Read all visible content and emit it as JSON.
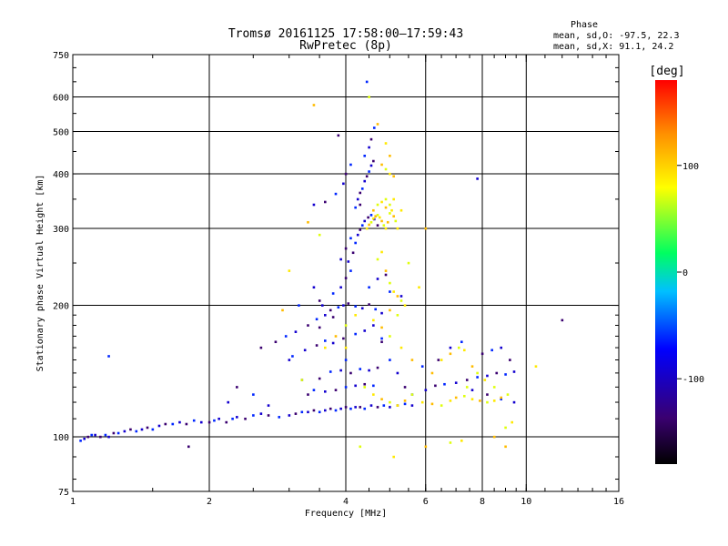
{
  "chart_data": {
    "type": "scatter",
    "title": "Tromsø 20161125 17:58:00–17:59:43",
    "subtitle": "RwPretec (8p)",
    "xlabel": "Frequency [MHz]",
    "ylabel": "Stationary phase Virtual Height [km]",
    "xscale": "log",
    "yscale": "log",
    "xlim": [
      1,
      16
    ],
    "ylim": [
      75,
      750
    ],
    "xticks": [
      1,
      2,
      4,
      6,
      8,
      10,
      16
    ],
    "yticks": [
      75,
      100,
      200,
      300,
      400,
      500,
      600,
      750
    ],
    "grid": true,
    "grid_x": [
      2,
      4,
      6,
      8,
      10
    ],
    "grid_y": [
      100,
      200,
      300,
      400,
      500,
      600
    ],
    "colorbar": {
      "label": "[deg]",
      "range": [
        -180,
        180
      ],
      "ticks": [
        100,
        0,
        -100
      ],
      "colors": [
        "#000000",
        "#3a0070",
        "#0000ff",
        "#00c0ff",
        "#00ff60",
        "#ffff00",
        "#ff9000",
        "#ff0000"
      ]
    },
    "stats": {
      "header": "Phase",
      "line_o": "mean, sd,O: -97.5, 22.3",
      "line_x": "mean, sd,X:  91.1, 24.2"
    },
    "series": [
      {
        "name": "O",
        "phase": -97.5,
        "points": [
          [
            1.04,
            98
          ],
          [
            1.06,
            99
          ],
          [
            1.08,
            100
          ],
          [
            1.1,
            101
          ],
          [
            1.12,
            101
          ],
          [
            1.15,
            100
          ],
          [
            1.18,
            101
          ],
          [
            1.2,
            100
          ],
          [
            1.23,
            102
          ],
          [
            1.26,
            102
          ],
          [
            1.3,
            103
          ],
          [
            1.34,
            104
          ],
          [
            1.38,
            103
          ],
          [
            1.42,
            104
          ],
          [
            1.46,
            105
          ],
          [
            1.5,
            104
          ],
          [
            1.55,
            106
          ],
          [
            1.6,
            107
          ],
          [
            1.66,
            107
          ],
          [
            1.72,
            108
          ],
          [
            1.78,
            107
          ],
          [
            1.85,
            109
          ],
          [
            1.92,
            108
          ],
          [
            2.0,
            108
          ],
          [
            2.05,
            109
          ],
          [
            2.1,
            110
          ],
          [
            2.18,
            108
          ],
          [
            2.25,
            110
          ],
          [
            2.3,
            111
          ],
          [
            2.4,
            110
          ],
          [
            2.5,
            112
          ],
          [
            2.6,
            113
          ],
          [
            2.7,
            112
          ],
          [
            2.85,
            111
          ],
          [
            3.0,
            112
          ],
          [
            3.1,
            113
          ],
          [
            3.2,
            114
          ],
          [
            3.3,
            114
          ],
          [
            3.4,
            115
          ],
          [
            3.5,
            114
          ],
          [
            3.6,
            115
          ],
          [
            3.7,
            116
          ],
          [
            3.8,
            115
          ],
          [
            3.9,
            116
          ],
          [
            4.0,
            117
          ],
          [
            4.1,
            116
          ],
          [
            4.2,
            117
          ],
          [
            4.3,
            117
          ],
          [
            4.4,
            116
          ],
          [
            4.55,
            118
          ],
          [
            4.7,
            117
          ],
          [
            4.85,
            118
          ],
          [
            5.0,
            117
          ],
          [
            5.2,
            118
          ],
          [
            5.4,
            119
          ],
          [
            5.6,
            118
          ],
          [
            3.3,
            125
          ],
          [
            3.4,
            128
          ],
          [
            3.6,
            127
          ],
          [
            3.8,
            128
          ],
          [
            4.0,
            130
          ],
          [
            4.2,
            131
          ],
          [
            4.4,
            132
          ],
          [
            4.6,
            131
          ],
          [
            3.2,
            135
          ],
          [
            3.5,
            136
          ],
          [
            3.7,
            141
          ],
          [
            3.9,
            142
          ],
          [
            4.1,
            140
          ],
          [
            4.3,
            143
          ],
          [
            4.5,
            142
          ],
          [
            4.7,
            144
          ],
          [
            3.05,
            153
          ],
          [
            3.25,
            158
          ],
          [
            3.45,
            162
          ],
          [
            3.6,
            166
          ],
          [
            3.75,
            164
          ],
          [
            3.95,
            168
          ],
          [
            4.2,
            172
          ],
          [
            4.4,
            175
          ],
          [
            2.8,
            165
          ],
          [
            2.95,
            170
          ],
          [
            3.1,
            174
          ],
          [
            3.3,
            180
          ],
          [
            3.45,
            186
          ],
          [
            3.6,
            190
          ],
          [
            3.7,
            195
          ],
          [
            3.85,
            198
          ],
          [
            3.95,
            200
          ],
          [
            4.05,
            202
          ],
          [
            4.2,
            199
          ],
          [
            4.35,
            197
          ],
          [
            4.5,
            201
          ],
          [
            4.65,
            196
          ],
          [
            4.8,
            192
          ],
          [
            3.5,
            205
          ],
          [
            3.75,
            213
          ],
          [
            3.9,
            220
          ],
          [
            4.0,
            231
          ],
          [
            4.1,
            240
          ],
          [
            4.05,
            252
          ],
          [
            4.15,
            264
          ],
          [
            4.2,
            278
          ],
          [
            4.25,
            290
          ],
          [
            4.3,
            298
          ],
          [
            4.35,
            305
          ],
          [
            4.4,
            312
          ],
          [
            4.48,
            318
          ],
          [
            4.55,
            322
          ],
          [
            4.62,
            315
          ],
          [
            4.7,
            305
          ],
          [
            4.2,
            335
          ],
          [
            4.25,
            350
          ],
          [
            4.3,
            362
          ],
          [
            4.35,
            370
          ],
          [
            4.4,
            385
          ],
          [
            4.45,
            395
          ],
          [
            4.5,
            405
          ],
          [
            4.55,
            418
          ],
          [
            4.6,
            428
          ],
          [
            4.4,
            440
          ],
          [
            4.5,
            460
          ],
          [
            4.55,
            480
          ],
          [
            4.62,
            510
          ],
          [
            3.4,
            340
          ],
          [
            3.6,
            345
          ],
          [
            3.8,
            360
          ],
          [
            3.95,
            380
          ],
          [
            4.0,
            400
          ],
          [
            4.1,
            420
          ],
          [
            3.9,
            255
          ],
          [
            4.0,
            270
          ],
          [
            4.1,
            285
          ],
          [
            3.55,
            200
          ],
          [
            3.75,
            188
          ],
          [
            4.5,
            220
          ],
          [
            4.7,
            230
          ],
          [
            4.9,
            235
          ],
          [
            5.0,
            215
          ],
          [
            4.6,
            180
          ],
          [
            4.8,
            165
          ],
          [
            5.0,
            150
          ],
          [
            5.2,
            140
          ],
          [
            5.4,
            130
          ],
          [
            5.6,
            125
          ],
          [
            6.0,
            128
          ],
          [
            6.3,
            131
          ],
          [
            6.6,
            132
          ],
          [
            7.0,
            133
          ],
          [
            7.4,
            135
          ],
          [
            7.8,
            137
          ],
          [
            8.2,
            138
          ],
          [
            8.6,
            140
          ],
          [
            9.0,
            139
          ],
          [
            9.4,
            141
          ],
          [
            8.0,
            155
          ],
          [
            8.4,
            158
          ],
          [
            8.8,
            160
          ],
          [
            9.2,
            150
          ],
          [
            7.2,
            165
          ],
          [
            6.8,
            160
          ],
          [
            6.4,
            150
          ],
          [
            5.9,
            145
          ],
          [
            7.6,
            128
          ],
          [
            8.2,
            125
          ],
          [
            8.8,
            122
          ],
          [
            9.4,
            120
          ],
          [
            1.8,
            95
          ],
          [
            1.2,
            153
          ],
          [
            2.2,
            120
          ],
          [
            2.3,
            130
          ],
          [
            3.15,
            200
          ],
          [
            3.4,
            220
          ],
          [
            3.85,
            490
          ],
          [
            4.45,
            650
          ],
          [
            7.8,
            390
          ],
          [
            12.0,
            185
          ],
          [
            4.0,
            150
          ],
          [
            3.0,
            150
          ],
          [
            2.6,
            160
          ],
          [
            2.5,
            125
          ],
          [
            2.7,
            118
          ],
          [
            3.5,
            178
          ],
          [
            4.8,
            168
          ],
          [
            5.3,
            210
          ],
          [
            4.3,
            340
          ]
        ],
        "color_by_phase": [
          -100,
          -120,
          -140
        ]
      },
      {
        "name": "X",
        "phase": 91.1,
        "points": [
          [
            4.45,
            300
          ],
          [
            4.5,
            306
          ],
          [
            4.55,
            310
          ],
          [
            4.6,
            316
          ],
          [
            4.65,
            320
          ],
          [
            4.7,
            322
          ],
          [
            4.75,
            318
          ],
          [
            4.8,
            312
          ],
          [
            4.85,
            305
          ],
          [
            4.9,
            300
          ],
          [
            4.95,
            310
          ],
          [
            5.0,
            325
          ],
          [
            5.05,
            330
          ],
          [
            5.1,
            320
          ],
          [
            5.15,
            312
          ],
          [
            5.2,
            300
          ],
          [
            4.6,
            330
          ],
          [
            4.7,
            340
          ],
          [
            4.8,
            345
          ],
          [
            4.9,
            335
          ],
          [
            5.0,
            340
          ],
          [
            5.1,
            350
          ],
          [
            4.8,
            420
          ],
          [
            4.9,
            410
          ],
          [
            5.0,
            400
          ],
          [
            5.1,
            395
          ],
          [
            4.7,
            255
          ],
          [
            4.8,
            265
          ],
          [
            4.9,
            240
          ],
          [
            5.0,
            225
          ],
          [
            5.1,
            215
          ],
          [
            5.2,
            210
          ],
          [
            5.3,
            205
          ],
          [
            5.4,
            200
          ],
          [
            5.0,
            195
          ],
          [
            5.2,
            190
          ],
          [
            4.6,
            185
          ],
          [
            4.8,
            178
          ],
          [
            5.0,
            170
          ],
          [
            5.3,
            160
          ],
          [
            5.6,
            150
          ],
          [
            4.4,
            130
          ],
          [
            4.6,
            125
          ],
          [
            4.8,
            122
          ],
          [
            5.0,
            120
          ],
          [
            5.2,
            118
          ],
          [
            5.4,
            121
          ],
          [
            5.6,
            125
          ],
          [
            5.9,
            120
          ],
          [
            6.2,
            119
          ],
          [
            6.5,
            118
          ],
          [
            6.8,
            121
          ],
          [
            7.0,
            123
          ],
          [
            7.3,
            124
          ],
          [
            7.6,
            122
          ],
          [
            7.9,
            121
          ],
          [
            8.2,
            120
          ],
          [
            8.5,
            121
          ],
          [
            8.8,
            123
          ],
          [
            9.1,
            125
          ],
          [
            6.5,
            150
          ],
          [
            6.8,
            155
          ],
          [
            7.1,
            160
          ],
          [
            7.3,
            158
          ],
          [
            7.6,
            145
          ],
          [
            7.8,
            140
          ],
          [
            8.1,
            135
          ],
          [
            6.0,
            95
          ],
          [
            6.8,
            97
          ],
          [
            7.2,
            98
          ],
          [
            8.5,
            100
          ],
          [
            9.0,
            105
          ],
          [
            9.3,
            108
          ],
          [
            3.4,
            575
          ],
          [
            4.5,
            600
          ],
          [
            4.9,
            470
          ],
          [
            5.0,
            440
          ],
          [
            3.2,
            135
          ],
          [
            3.6,
            160
          ],
          [
            3.8,
            170
          ],
          [
            4.0,
            180
          ],
          [
            4.2,
            190
          ],
          [
            3.3,
            310
          ],
          [
            3.5,
            290
          ],
          [
            4.0,
            160
          ],
          [
            4.7,
            520
          ],
          [
            5.5,
            250
          ],
          [
            5.8,
            220
          ],
          [
            6.0,
            300
          ],
          [
            4.3,
            95
          ],
          [
            5.1,
            90
          ],
          [
            9.0,
            95
          ],
          [
            8.5,
            130
          ],
          [
            10.5,
            145
          ],
          [
            6.2,
            140
          ],
          [
            7.4,
            130
          ],
          [
            3.0,
            240
          ],
          [
            2.9,
            195
          ],
          [
            4.9,
            350
          ],
          [
            5.3,
            330
          ]
        ],
        "color_by_phase": [
          90,
          110,
          70
        ]
      }
    ]
  }
}
